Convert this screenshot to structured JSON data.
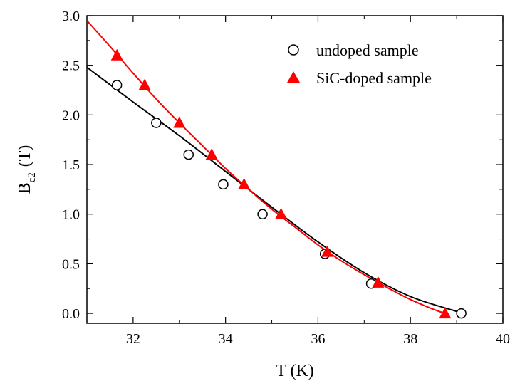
{
  "chart_data": {
    "type": "scatter",
    "xlabel": "T (K)",
    "ylabel": {
      "main": "B",
      "subscript": "c2",
      "unit": "(T)"
    },
    "xlim": [
      31,
      40
    ],
    "ylim": [
      -0.1,
      3.0
    ],
    "xticks": [
      32,
      34,
      36,
      38,
      40
    ],
    "xtick_labels": [
      "32",
      "34",
      "36",
      "38",
      "40"
    ],
    "yticks": [
      0.0,
      0.5,
      1.0,
      1.5,
      2.0,
      2.5,
      3.0
    ],
    "ytick_labels": [
      "0.0",
      "0.5",
      "1.0",
      "1.5",
      "2.0",
      "2.5",
      "3.0"
    ],
    "grid": false,
    "legend_position": "top-right",
    "series": [
      {
        "name": "undoped sample",
        "marker": "open-circle",
        "color": "#000000",
        "x": [
          31.65,
          32.5,
          33.2,
          33.95,
          34.8,
          36.15,
          37.15,
          39.1
        ],
        "y": [
          2.3,
          1.92,
          1.6,
          1.3,
          1.0,
          0.6,
          0.3,
          0.0
        ],
        "fit_curve": {
          "color": "#000000",
          "x": [
            31.0,
            32.0,
            33.0,
            34.0,
            35.0,
            36.0,
            37.0,
            38.0,
            39.0
          ],
          "y": [
            2.48,
            2.13,
            1.79,
            1.43,
            1.07,
            0.72,
            0.41,
            0.17,
            0.02
          ]
        }
      },
      {
        "name": "SiC-doped sample",
        "marker": "filled-triangle",
        "color": "#ff0000",
        "x": [
          31.65,
          32.25,
          33.0,
          33.7,
          34.4,
          35.2,
          36.2,
          37.3,
          38.75
        ],
        "y": [
          2.6,
          2.3,
          1.92,
          1.6,
          1.3,
          1.0,
          0.62,
          0.31,
          0.0
        ],
        "fit_curve": {
          "color": "#ff0000",
          "x": [
            31.0,
            31.5,
            32.0,
            32.5,
            33.0,
            33.5,
            34.0,
            34.5,
            35.0,
            35.5,
            36.0,
            36.5,
            37.0,
            37.5,
            38.0,
            38.5,
            38.75
          ],
          "y": [
            2.95,
            2.69,
            2.42,
            2.16,
            1.92,
            1.69,
            1.46,
            1.25,
            1.05,
            0.87,
            0.69,
            0.53,
            0.39,
            0.26,
            0.14,
            0.04,
            0.0
          ]
        }
      }
    ]
  }
}
